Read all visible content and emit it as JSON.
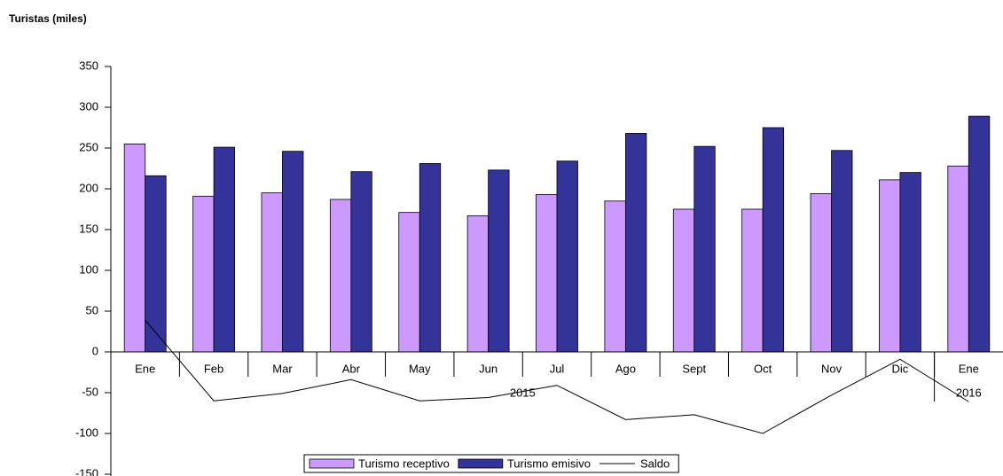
{
  "chart_data": {
    "type": "bar",
    "title": "Turistas (miles)",
    "categories": [
      "Ene",
      "Feb",
      "Mar",
      "Abr",
      "May",
      "Jun",
      "Jul",
      "Ago",
      "Sept",
      "Oct",
      "Nov",
      "Dic",
      "Ene"
    ],
    "groups": [
      {
        "label": "2015",
        "size": 12
      },
      {
        "label": "2016",
        "size": 1
      }
    ],
    "series": [
      {
        "name": "Turismo receptivo",
        "type": "bar",
        "color": "#cc99ff",
        "values": [
          255,
          191,
          195,
          187,
          171,
          167,
          193,
          185,
          175,
          175,
          194,
          211,
          228
        ]
      },
      {
        "name": "Turismo emisivo",
        "type": "bar",
        "color": "#333399",
        "values": [
          216,
          251,
          246,
          221,
          231,
          223,
          234,
          268,
          252,
          275,
          247,
          220,
          289
        ]
      },
      {
        "name": "Saldo",
        "type": "line",
        "color": "#000000",
        "values": [
          39,
          -60,
          -51,
          -34,
          -60,
          -56,
          -41,
          -83,
          -77,
          -100,
          -53,
          -9,
          -61
        ]
      }
    ],
    "ylim": [
      -150,
      350
    ],
    "yticks": [
      -150,
      -100,
      -50,
      0,
      50,
      100,
      150,
      200,
      250,
      300,
      350
    ],
    "legend": "bottom"
  }
}
